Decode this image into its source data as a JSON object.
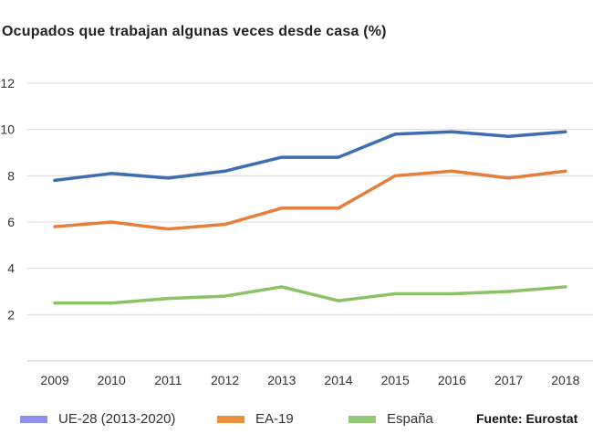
{
  "chart_data": {
    "type": "line",
    "title": "Ocupados que trabajan algunas veces desde casa (%)",
    "categories": [
      "2009",
      "2010",
      "2011",
      "2012",
      "2013",
      "2014",
      "2015",
      "2016",
      "2017",
      "2018"
    ],
    "ylim": [
      0,
      12
    ],
    "yticks": [
      "2",
      "4",
      "6",
      "8",
      "10",
      "12"
    ],
    "grid": true,
    "legend_placement": "bottom",
    "series": [
      {
        "name": "UE-28 (2013-2020)",
        "color": "#3f6db3",
        "legend_color": "#8f90ee",
        "values": [
          7.8,
          8.1,
          7.9,
          8.2,
          8.8,
          8.8,
          9.8,
          9.9,
          9.7,
          9.9
        ]
      },
      {
        "name": "EA-19",
        "color": "#e57f3c",
        "legend_color": "#ee8f3e",
        "values": [
          5.8,
          6.0,
          5.7,
          5.9,
          6.6,
          6.6,
          8.0,
          8.2,
          7.9,
          8.2
        ]
      },
      {
        "name": "España",
        "color": "#8cc266",
        "legend_color": "#93c972",
        "values": [
          2.5,
          2.5,
          2.7,
          2.8,
          3.2,
          2.6,
          2.9,
          2.9,
          3.0,
          3.2
        ]
      }
    ],
    "source": "Fuente: Eurostat"
  }
}
